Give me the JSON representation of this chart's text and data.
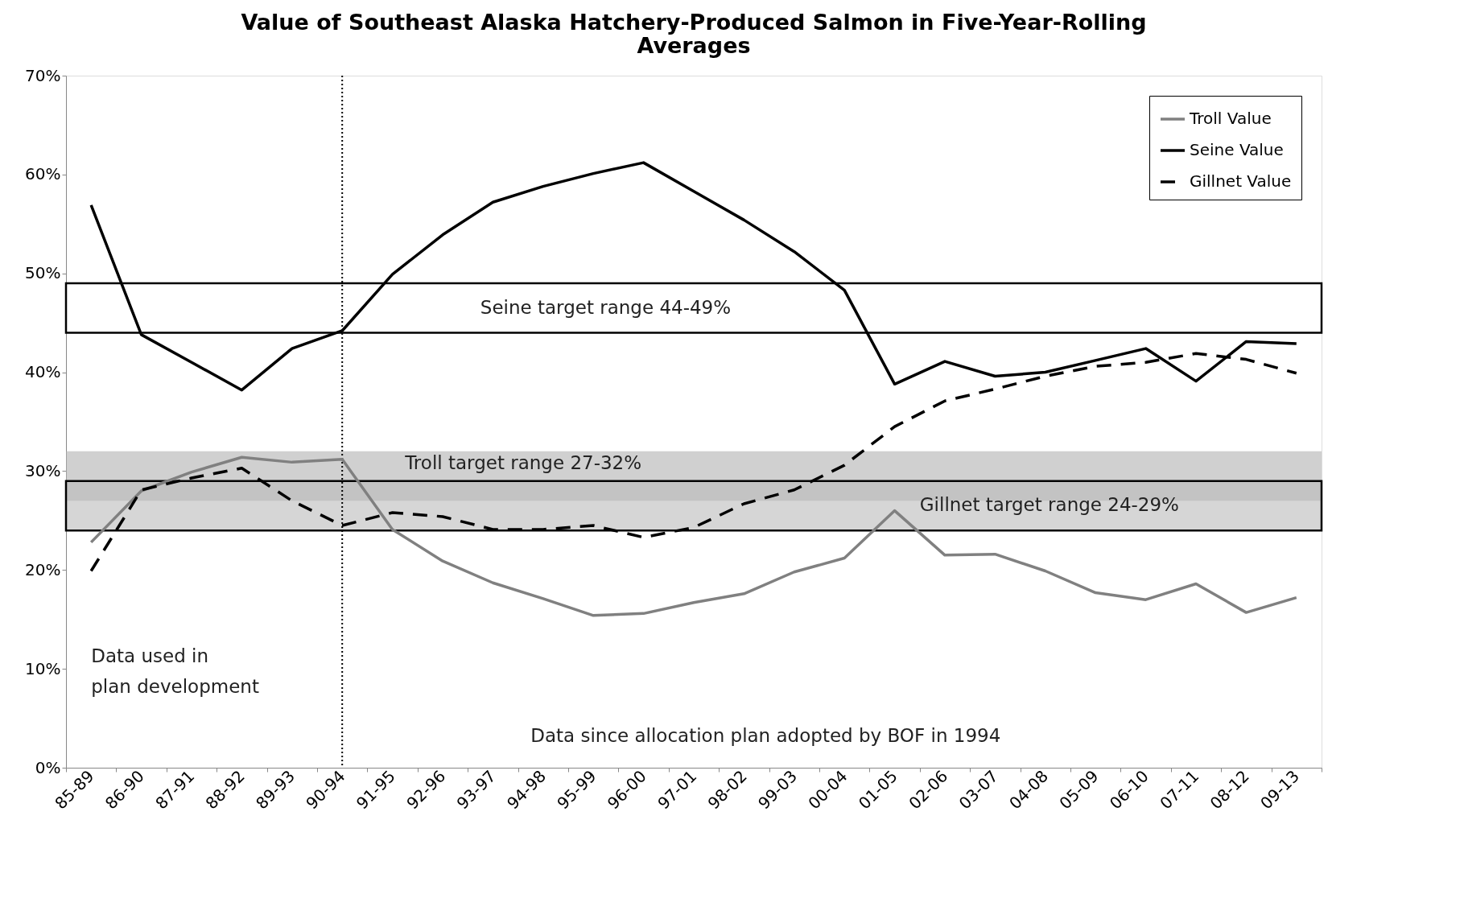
{
  "chart_data": {
    "type": "line",
    "title": "Value of Southeast Alaska Hatchery-Produced Salmon in Five-Year-Rolling Averages",
    "categories": [
      "85-89",
      "86-90",
      "87-91",
      "88-92",
      "89-93",
      "90-94",
      "91-95",
      "92-96",
      "93-97",
      "94-98",
      "95-99",
      "96-00",
      "97-01",
      "98-02",
      "99-03",
      "00-04",
      "01-05",
      "02-06",
      "03-07",
      "04-08",
      "05-09",
      "06-10",
      "07-11",
      "08-12",
      "09-13"
    ],
    "series": [
      {
        "name": "Troll Value",
        "color": "#808080",
        "line_style": "solid",
        "values": [
          22.8,
          28.0,
          29.9,
          31.4,
          30.9,
          31.2,
          24.1,
          20.9,
          18.7,
          17.1,
          15.4,
          15.6,
          16.7,
          17.6,
          19.8,
          21.2,
          26.0,
          21.5,
          21.6,
          19.9,
          17.7,
          17.0,
          18.6,
          15.7,
          17.2
        ]
      },
      {
        "name": "Seine Value",
        "color": "#000000",
        "line_style": "solid",
        "values": [
          56.9,
          43.8,
          41.0,
          38.2,
          42.4,
          44.2,
          49.9,
          53.9,
          57.2,
          58.8,
          60.1,
          61.2,
          58.3,
          55.4,
          52.2,
          48.3,
          38.8,
          41.1,
          39.6,
          40.0,
          41.2,
          42.4,
          39.1,
          43.1,
          42.9
        ]
      },
      {
        "name": "Gillnet Value",
        "color": "#000000",
        "line_style": "dashed",
        "values": [
          19.9,
          28.1,
          29.3,
          30.3,
          27.0,
          24.5,
          25.8,
          25.4,
          24.1,
          24.1,
          24.5,
          23.3,
          24.3,
          26.7,
          28.1,
          30.6,
          34.5,
          37.1,
          38.3,
          39.6,
          40.6,
          41.0,
          41.9,
          41.3,
          39.9
        ]
      }
    ],
    "ylim": [
      0,
      70
    ],
    "yticks": [
      {
        "value": 0,
        "label": "0%"
      },
      {
        "value": 10,
        "label": "10%"
      },
      {
        "value": 20,
        "label": "20%"
      },
      {
        "value": 30,
        "label": "30%"
      },
      {
        "value": 40,
        "label": "40%"
      },
      {
        "value": 50,
        "label": "50%"
      },
      {
        "value": 60,
        "label": "60%"
      },
      {
        "value": 70,
        "label": "70%"
      }
    ],
    "bands": [
      {
        "axis": "y",
        "from": 44,
        "to": 49,
        "label": "Seine target range 44-49%",
        "color": "#ffffff"
      },
      {
        "axis": "y",
        "from": 27,
        "to": 32,
        "label": "Troll target range 27-32%",
        "color": "#b0b0b0"
      },
      {
        "axis": "y",
        "from": 24,
        "to": 29,
        "label": "Gillnet target range 24-29%",
        "color": "#bbbbbb"
      }
    ],
    "ref_lines": [
      {
        "axis": "x",
        "value": "90-94",
        "line_style": "dotted"
      }
    ],
    "annotations": [
      "Data used in\nplan development",
      "Data since allocation plan adopted by BOF in 1994"
    ],
    "grid": false,
    "legend": "top right"
  }
}
